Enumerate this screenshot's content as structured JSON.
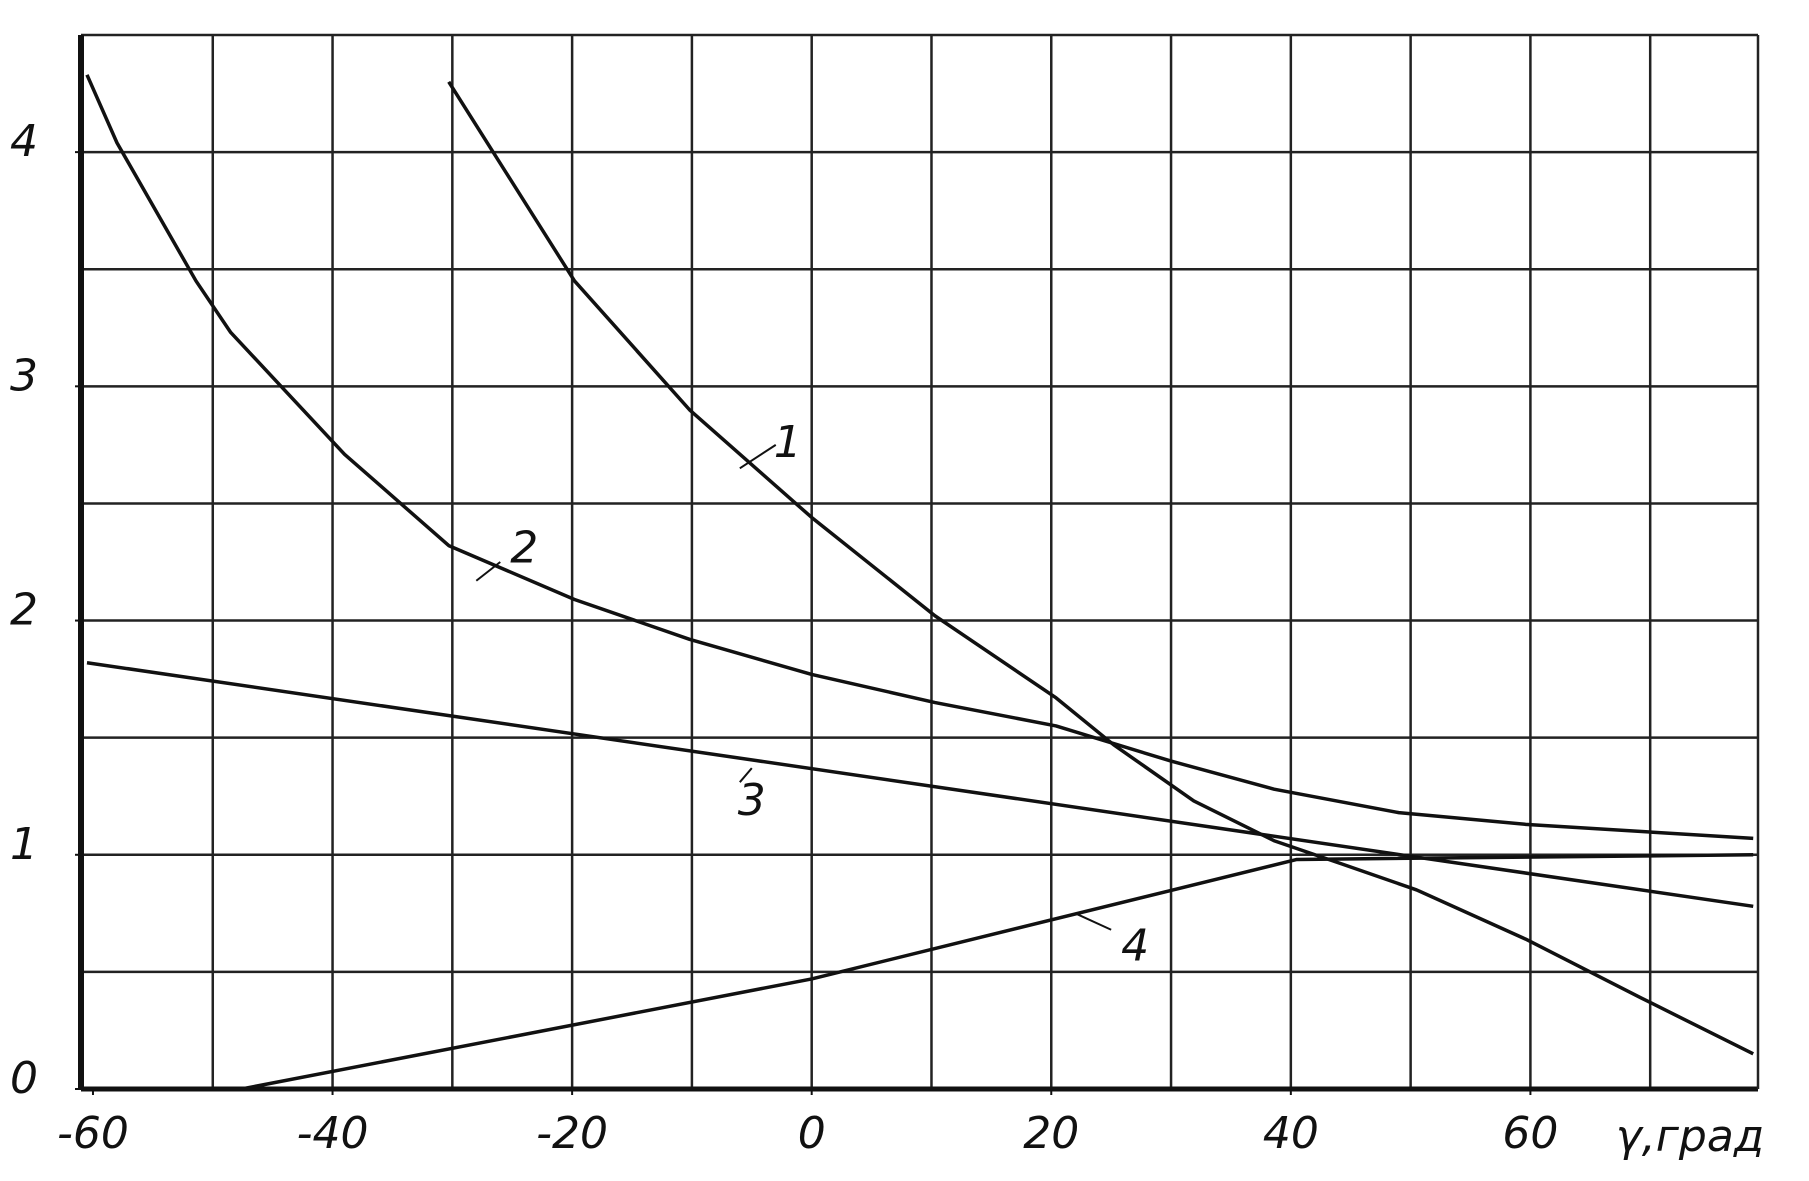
{
  "chart_data": {
    "type": "line",
    "x_label": "γ,град",
    "xlim": [
      -61,
      79
    ],
    "ylim": [
      0,
      4.5
    ],
    "xticks": [
      -60,
      -40,
      -20,
      0,
      20,
      40,
      60
    ],
    "yticks": [
      0,
      1,
      2,
      3,
      4
    ],
    "xgrid": [
      -50,
      -40,
      -30,
      -20,
      -10,
      0,
      10,
      20,
      30,
      40,
      50,
      60,
      70
    ],
    "ygrid": [
      0.5,
      1,
      1.5,
      2,
      2.5,
      3,
      3.5,
      4,
      4.5
    ],
    "color": "#111111",
    "series": [
      {
        "name": "1",
        "x": [
          -30.3,
          -19.8,
          -10.2,
          0,
          10.3,
          20.4,
          25.2,
          31.9,
          38.6,
          44.3,
          50.5,
          59.6,
          69.2,
          78.6
        ],
        "values": [
          4.3,
          3.45,
          2.9,
          2.44,
          2.02,
          1.67,
          1.47,
          1.23,
          1.06,
          0.96,
          0.85,
          0.64,
          0.39,
          0.15
        ]
      },
      {
        "name": "2",
        "x": [
          -60.5,
          -58,
          -51.4,
          -48.5,
          -39,
          -30.3,
          -19.8,
          -10.2,
          0,
          10.3,
          20.4,
          30,
          38.6,
          49,
          59.6,
          78.6
        ],
        "values": [
          4.33,
          4.04,
          3.45,
          3.23,
          2.71,
          2.32,
          2.09,
          1.92,
          1.77,
          1.65,
          1.55,
          1.4,
          1.28,
          1.18,
          1.13,
          1.07
        ]
      },
      {
        "name": "3",
        "x": [
          -60.5,
          78.6
        ],
        "values": [
          1.82,
          0.78
        ]
      },
      {
        "name": "4",
        "x": [
          -60.5,
          -47.6,
          0,
          40.5,
          78.6
        ],
        "values": [
          0,
          0,
          0.47,
          0.98,
          1.0
        ]
      }
    ]
  }
}
